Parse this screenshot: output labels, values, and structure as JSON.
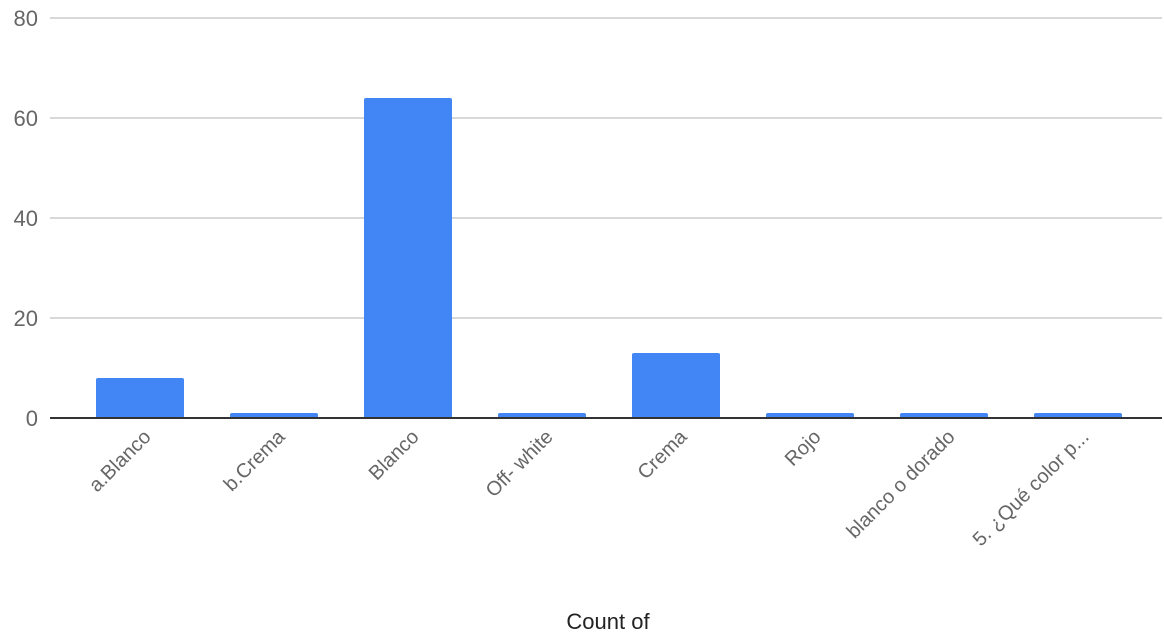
{
  "chart_data": {
    "type": "bar",
    "categories": [
      "a.Blanco",
      "b.Crema",
      "Blanco",
      "Off- white",
      "Crema",
      "Rojo",
      "blanco o dorado",
      "5. ¿Qué color p..."
    ],
    "values": [
      8,
      1,
      64,
      1,
      13,
      1,
      1,
      1
    ],
    "xlabel": "Count of",
    "ylabel": "",
    "ylim": [
      0,
      80
    ],
    "yticks": [
      0,
      20,
      40,
      60,
      80
    ],
    "grid": true,
    "legend": "none",
    "bar_color": "#4285f4",
    "grid_color": "#cccccc",
    "axis_color": "#333333"
  }
}
